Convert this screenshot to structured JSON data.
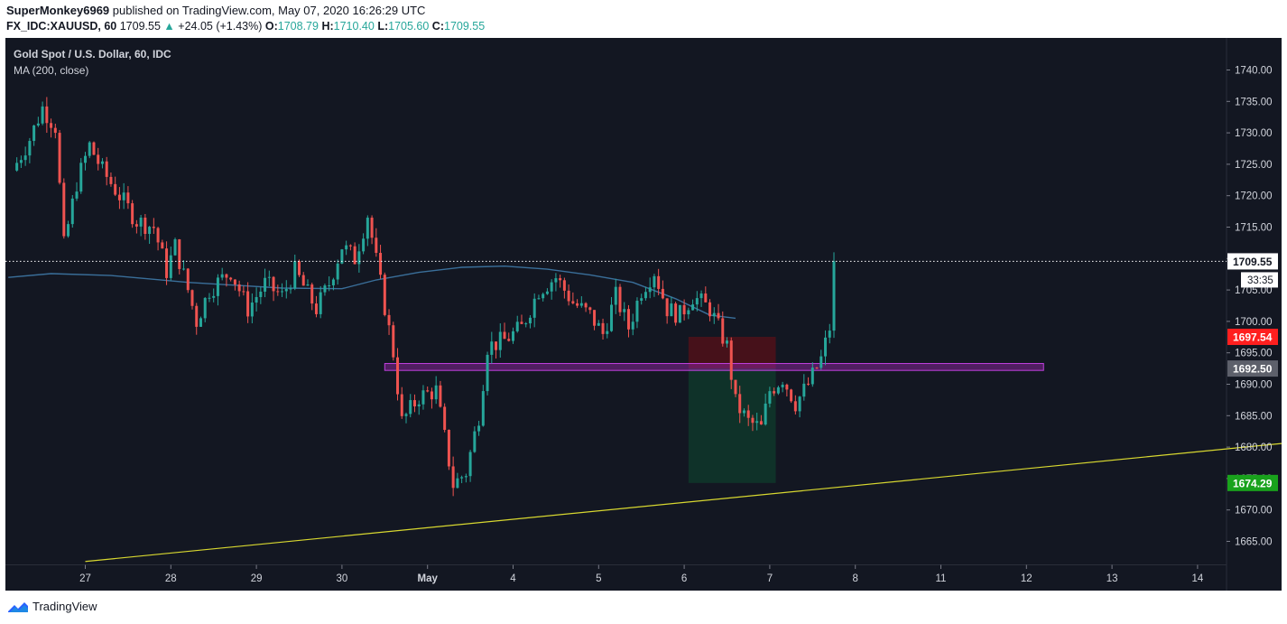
{
  "header": {
    "author": "SuperMonkey6969",
    "published_text": "published on TradingView.com, May 07, 2020 16:26:29 UTC",
    "symbol": "FX_IDC:XAUUSD, 60",
    "price": "1709.55",
    "change_arrow": "▲",
    "change": "+24.05 (+1.43%)",
    "open_label": "O:",
    "open": "1708.79",
    "high_label": "H:",
    "high": "1710.40",
    "low_label": "L:",
    "low": "1705.60",
    "close_label": "C:",
    "close": "1709.55"
  },
  "legend": {
    "title": "Gold Spot / U.S. Dollar, 60, IDC",
    "indicator": "MA (200, close)"
  },
  "footer": {
    "brand": "TradingView"
  },
  "colors": {
    "background": "#131722",
    "up": "#26a69a",
    "down": "#ef5350",
    "ma": "#3a6f9a",
    "trendline": "#d8d830",
    "zone": "#9c27b0",
    "stop": "#ff0000",
    "target": "#00b050"
  },
  "chart_data": {
    "type": "candlestick",
    "title": "Gold Spot / U.S. Dollar, 60, IDC",
    "x_ticks": [
      "27",
      "28",
      "29",
      "30",
      "May",
      "4",
      "5",
      "6",
      "7",
      "8",
      "11",
      "12",
      "13",
      "14"
    ],
    "y_ticks": [
      "1740.00",
      "1735.00",
      "1730.00",
      "1725.00",
      "1720.00",
      "1715.00",
      "1710.00",
      "1705.00",
      "1700.00",
      "1695.00",
      "1690.00",
      "1685.00",
      "1680.00",
      "1675.00",
      "1670.00",
      "1665.00"
    ],
    "ylim": [
      1661.3,
      1745.8
    ],
    "last_price": 1709.55,
    "countdown": "33:35",
    "price_labels": [
      {
        "value": "1697.54",
        "kind": "stop"
      },
      {
        "value": "1692.50",
        "kind": "entry"
      },
      {
        "value": "1674.29",
        "kind": "target"
      }
    ],
    "support_zone": {
      "low": 1692.2,
      "high": 1693.3,
      "from_day": 3.5,
      "to_day": 11.2
    },
    "short_position": {
      "from_day": 7.05,
      "to_day": 8.07,
      "entry": 1692.5,
      "stop": 1697.54,
      "target": 1674.29
    },
    "trendline": [
      {
        "day": 0.0,
        "price": 1661.8
      },
      {
        "day": 14.3,
        "price": 1681.0
      }
    ],
    "ma_200": [
      {
        "day": -0.9,
        "price": 1707.0
      },
      {
        "day": -0.4,
        "price": 1707.6
      },
      {
        "day": 0.3,
        "price": 1707.3
      },
      {
        "day": 1.2,
        "price": 1706.2
      },
      {
        "day": 2.3,
        "price": 1705.3
      },
      {
        "day": 3.0,
        "price": 1705.2
      },
      {
        "day": 3.4,
        "price": 1706.6
      },
      {
        "day": 3.9,
        "price": 1707.8
      },
      {
        "day": 4.4,
        "price": 1708.6
      },
      {
        "day": 4.9,
        "price": 1708.8
      },
      {
        "day": 5.4,
        "price": 1708.3
      },
      {
        "day": 5.9,
        "price": 1707.4
      },
      {
        "day": 6.4,
        "price": 1706.2
      },
      {
        "day": 6.9,
        "price": 1703.6
      },
      {
        "day": 7.3,
        "price": 1701.0
      },
      {
        "day": 7.6,
        "price": 1700.5
      }
    ],
    "series": [
      {
        "name": "XAUUSD 60m close",
        "points": [
          {
            "day": -0.85,
            "price": 1724
          },
          {
            "day": -0.65,
            "price": 1729
          },
          {
            "day": -0.5,
            "price": 1734
          },
          {
            "day": -0.35,
            "price": 1731
          },
          {
            "day": -0.25,
            "price": 1712
          },
          {
            "day": -0.1,
            "price": 1722
          },
          {
            "day": 0.05,
            "price": 1728
          },
          {
            "day": 0.2,
            "price": 1724
          },
          {
            "day": 0.4,
            "price": 1720
          },
          {
            "day": 0.6,
            "price": 1716
          },
          {
            "day": 0.8,
            "price": 1715
          },
          {
            "day": 0.95,
            "price": 1708
          },
          {
            "day": 1.05,
            "price": 1712
          },
          {
            "day": 1.2,
            "price": 1705
          },
          {
            "day": 1.3,
            "price": 1700
          },
          {
            "day": 1.45,
            "price": 1705
          },
          {
            "day": 1.7,
            "price": 1708
          },
          {
            "day": 1.9,
            "price": 1702
          },
          {
            "day": 2.1,
            "price": 1706
          },
          {
            "day": 2.3,
            "price": 1704
          },
          {
            "day": 2.45,
            "price": 1708
          },
          {
            "day": 2.7,
            "price": 1702
          },
          {
            "day": 2.85,
            "price": 1706
          },
          {
            "day": 3.0,
            "price": 1712
          },
          {
            "day": 3.15,
            "price": 1710
          },
          {
            "day": 3.3,
            "price": 1717
          },
          {
            "day": 3.45,
            "price": 1706
          },
          {
            "day": 3.6,
            "price": 1695
          },
          {
            "day": 3.7,
            "price": 1684
          },
          {
            "day": 3.9,
            "price": 1688
          },
          {
            "day": 4.1,
            "price": 1689
          },
          {
            "day": 4.3,
            "price": 1674
          },
          {
            "day": 4.45,
            "price": 1676
          },
          {
            "day": 4.6,
            "price": 1685
          },
          {
            "day": 4.7,
            "price": 1696
          },
          {
            "day": 4.9,
            "price": 1697
          },
          {
            "day": 5.1,
            "price": 1699
          },
          {
            "day": 5.3,
            "price": 1705
          },
          {
            "day": 5.5,
            "price": 1707
          },
          {
            "day": 5.7,
            "price": 1703
          },
          {
            "day": 5.9,
            "price": 1701
          },
          {
            "day": 6.05,
            "price": 1698
          },
          {
            "day": 6.2,
            "price": 1704
          },
          {
            "day": 6.35,
            "price": 1699
          },
          {
            "day": 6.5,
            "price": 1705
          },
          {
            "day": 6.65,
            "price": 1708
          },
          {
            "day": 6.8,
            "price": 1702
          },
          {
            "day": 6.95,
            "price": 1701
          },
          {
            "day": 7.1,
            "price": 1704
          },
          {
            "day": 7.3,
            "price": 1702
          },
          {
            "day": 7.5,
            "price": 1696
          },
          {
            "day": 7.6,
            "price": 1687
          },
          {
            "day": 7.75,
            "price": 1684
          },
          {
            "day": 7.9,
            "price": 1683
          },
          {
            "day": 8.0,
            "price": 1689
          },
          {
            "day": 8.15,
            "price": 1691
          },
          {
            "day": 8.3,
            "price": 1687
          },
          {
            "day": 8.45,
            "price": 1690
          },
          {
            "day": 8.6,
            "price": 1694
          },
          {
            "day": 8.7,
            "price": 1699
          },
          {
            "day": 8.75,
            "price": 1709.55
          }
        ]
      }
    ]
  }
}
